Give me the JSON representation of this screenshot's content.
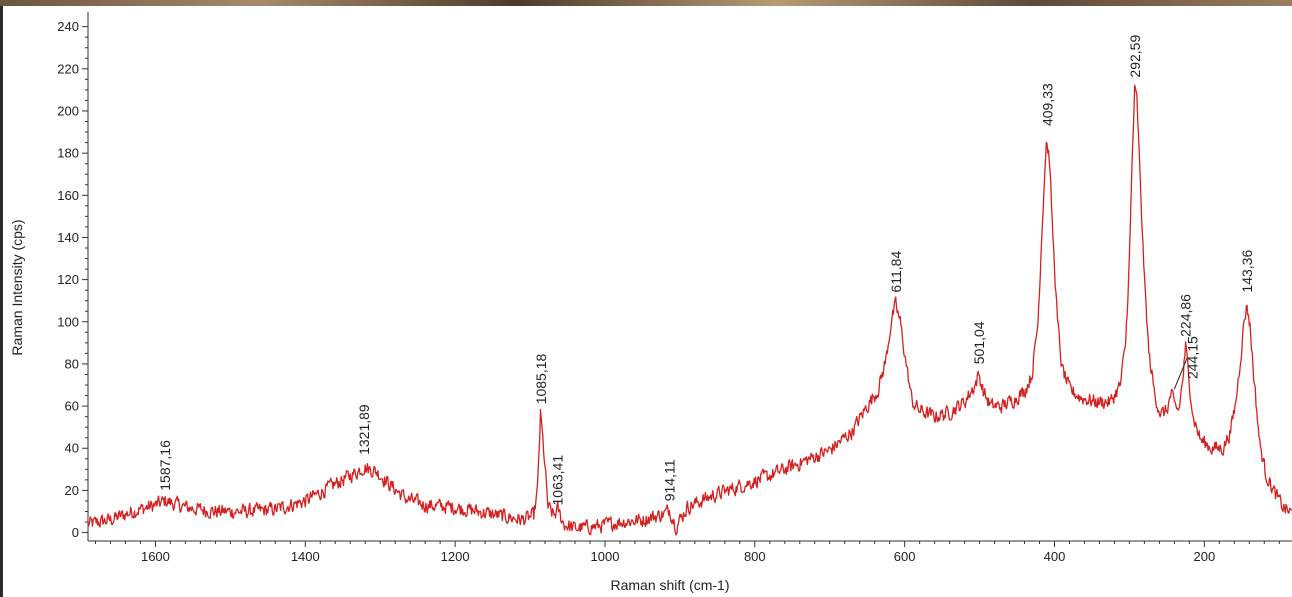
{
  "chart_data": {
    "type": "line",
    "title": "",
    "xlabel": "Raman shift (cm-1)",
    "ylabel": "Raman Intensity (cps)",
    "xlim": [
      1690,
      83
    ],
    "ylim": [
      -4,
      246
    ],
    "x_reversed": true,
    "x_ticks": [
      "1600",
      "1400",
      "1200",
      "1000",
      "800",
      "600",
      "400",
      "200"
    ],
    "y_ticks": [
      "0",
      "20",
      "40",
      "60",
      "80",
      "100",
      "120",
      "140",
      "160",
      "180",
      "200",
      "220",
      "240"
    ],
    "grid": false,
    "legend": "none",
    "line_color": "#d42020",
    "series": [
      {
        "points": [
          [
            1690,
            4
          ],
          [
            1660,
            6
          ],
          [
            1630,
            10
          ],
          [
            1600,
            13
          ],
          [
            1587,
            15
          ],
          [
            1560,
            12
          ],
          [
            1520,
            10
          ],
          [
            1480,
            10
          ],
          [
            1440,
            11
          ],
          [
            1400,
            15
          ],
          [
            1380,
            19
          ],
          [
            1350,
            25
          ],
          [
            1330,
            29
          ],
          [
            1322,
            31
          ],
          [
            1305,
            29
          ],
          [
            1285,
            22
          ],
          [
            1265,
            16
          ],
          [
            1240,
            13
          ],
          [
            1200,
            12
          ],
          [
            1170,
            10
          ],
          [
            1140,
            8
          ],
          [
            1110,
            6
          ],
          [
            1095,
            8
          ],
          [
            1090,
            20
          ],
          [
            1086,
            56
          ],
          [
            1082,
            40
          ],
          [
            1076,
            12
          ],
          [
            1068,
            8
          ],
          [
            1063,
            11
          ],
          [
            1055,
            4
          ],
          [
            1040,
            2
          ],
          [
            1010,
            3
          ],
          [
            980,
            5
          ],
          [
            950,
            6
          ],
          [
            920,
            9
          ],
          [
            914,
            11
          ],
          [
            905,
            3
          ],
          [
            890,
            12
          ],
          [
            860,
            17
          ],
          [
            820,
            22
          ],
          [
            780,
            27
          ],
          [
            740,
            33
          ],
          [
            700,
            39
          ],
          [
            670,
            48
          ],
          [
            650,
            60
          ],
          [
            635,
            68
          ],
          [
            625,
            82
          ],
          [
            618,
            100
          ],
          [
            612,
            108
          ],
          [
            606,
            100
          ],
          [
            598,
            80
          ],
          [
            590,
            62
          ],
          [
            580,
            58
          ],
          [
            560,
            55
          ],
          [
            540,
            57
          ],
          [
            520,
            62
          ],
          [
            506,
            70
          ],
          [
            501,
            75
          ],
          [
            494,
            66
          ],
          [
            485,
            60
          ],
          [
            470,
            60
          ],
          [
            455,
            63
          ],
          [
            440,
            67
          ],
          [
            430,
            75
          ],
          [
            422,
            100
          ],
          [
            416,
            150
          ],
          [
            411,
            186
          ],
          [
            407,
            178
          ],
          [
            402,
            140
          ],
          [
            396,
            100
          ],
          [
            390,
            78
          ],
          [
            380,
            68
          ],
          [
            365,
            64
          ],
          [
            345,
            62
          ],
          [
            325,
            62
          ],
          [
            312,
            70
          ],
          [
            305,
            90
          ],
          [
            300,
            130
          ],
          [
            296,
            180
          ],
          [
            293,
            210
          ],
          [
            290,
            205
          ],
          [
            286,
            170
          ],
          [
            280,
            120
          ],
          [
            274,
            85
          ],
          [
            266,
            65
          ],
          [
            258,
            56
          ],
          [
            250,
            58
          ],
          [
            244,
            66
          ],
          [
            240,
            60
          ],
          [
            234,
            58
          ],
          [
            229,
            72
          ],
          [
            225,
            88
          ],
          [
            221,
            75
          ],
          [
            215,
            55
          ],
          [
            205,
            44
          ],
          [
            190,
            40
          ],
          [
            175,
            40
          ],
          [
            165,
            48
          ],
          [
            158,
            62
          ],
          [
            152,
            82
          ],
          [
            147,
            100
          ],
          [
            143,
            108
          ],
          [
            139,
            98
          ],
          [
            133,
            70
          ],
          [
            126,
            42
          ],
          [
            118,
            28
          ],
          [
            108,
            20
          ],
          [
            95,
            12
          ],
          [
            83,
            9
          ]
        ]
      }
    ],
    "peak_labels": [
      {
        "x": 1587.16,
        "text": "1587,16"
      },
      {
        "x": 1321.89,
        "text": "1321,89"
      },
      {
        "x": 1085.18,
        "text": "1085,18"
      },
      {
        "x": 1063.41,
        "text": "1063,41"
      },
      {
        "x": 914.11,
        "text": "914,11"
      },
      {
        "x": 611.84,
        "text": "611,84"
      },
      {
        "x": 501.04,
        "text": "501,04"
      },
      {
        "x": 409.33,
        "text": "409,33"
      },
      {
        "x": 292.59,
        "text": "292,59"
      },
      {
        "x": 244.15,
        "text": "244,15"
      },
      {
        "x": 224.86,
        "text": "224,86"
      },
      {
        "x": 143.36,
        "text": "143,36"
      }
    ]
  }
}
